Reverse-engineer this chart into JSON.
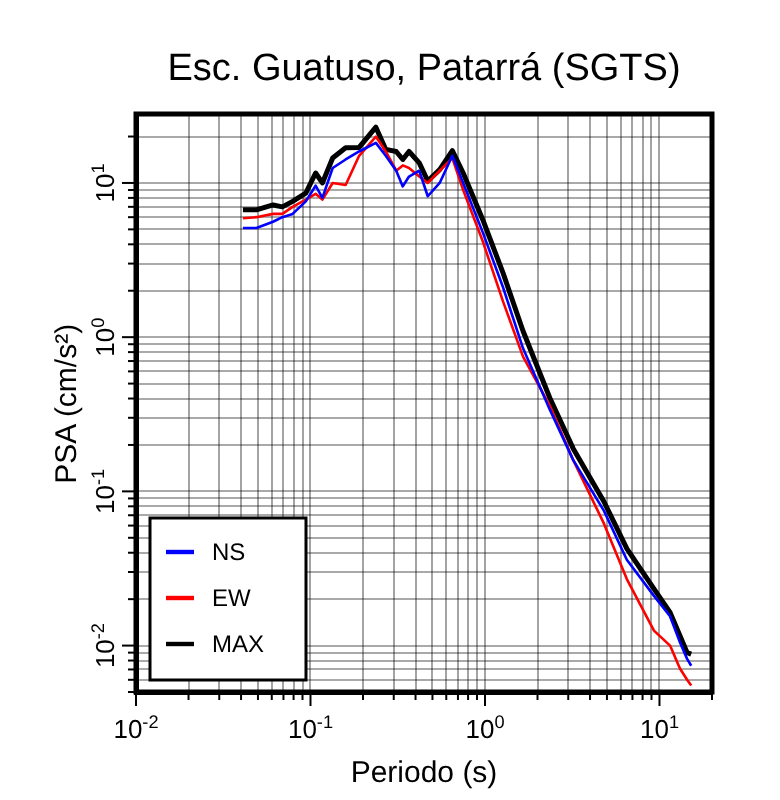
{
  "chart_data": {
    "type": "line",
    "title": "Esc. Guatuso, Patarrá (SGTS)",
    "xlabel": "Periodo (s)",
    "ylabel": "PSA (cm/s²)",
    "log": "xy",
    "grid": true,
    "legend": "bottom left",
    "xlim": [
      0.01,
      20
    ],
    "ylim": [
      0.005,
      28
    ],
    "xticks": [
      {
        "value": 0.01,
        "label": "10$^{-2}$"
      },
      {
        "value": 0.02,
        "label": null
      },
      {
        "value": 0.03,
        "label": null
      },
      {
        "value": 0.04,
        "label": null
      },
      {
        "value": 0.05,
        "label": null
      },
      {
        "value": 0.06,
        "label": null
      },
      {
        "value": 0.07,
        "label": null
      },
      {
        "value": 0.08,
        "label": null
      },
      {
        "value": 0.09,
        "label": null
      },
      {
        "value": 0.1,
        "label": "10$^{-1}$"
      },
      {
        "value": 0.2,
        "label": null
      },
      {
        "value": 0.3,
        "label": null
      },
      {
        "value": 0.4,
        "label": null
      },
      {
        "value": 0.5,
        "label": null
      },
      {
        "value": 0.6,
        "label": null
      },
      {
        "value": 0.7,
        "label": null
      },
      {
        "value": 0.8,
        "label": null
      },
      {
        "value": 0.9,
        "label": null
      },
      {
        "value": 1,
        "label": "10$^{0}$"
      },
      {
        "value": 2,
        "label": null
      },
      {
        "value": 3,
        "label": null
      },
      {
        "value": 4,
        "label": null
      },
      {
        "value": 5,
        "label": null
      },
      {
        "value": 6,
        "label": null
      },
      {
        "value": 7,
        "label": null
      },
      {
        "value": 8,
        "label": null
      },
      {
        "value": 9,
        "label": null
      },
      {
        "value": 10,
        "label": "10$^{1}$"
      },
      {
        "value": 20,
        "label": null
      }
    ],
    "yticks": [
      {
        "value": 0.005,
        "label": null
      },
      {
        "value": 0.006,
        "label": null
      },
      {
        "value": 0.007,
        "label": null
      },
      {
        "value": 0.008,
        "label": null
      },
      {
        "value": 0.009,
        "label": null
      },
      {
        "value": 0.01,
        "label": "10$^{-2}$"
      },
      {
        "value": 0.02,
        "label": null
      },
      {
        "value": 0.03,
        "label": null
      },
      {
        "value": 0.04,
        "label": null
      },
      {
        "value": 0.05,
        "label": null
      },
      {
        "value": 0.06,
        "label": null
      },
      {
        "value": 0.07,
        "label": null
      },
      {
        "value": 0.08,
        "label": null
      },
      {
        "value": 0.09,
        "label": null
      },
      {
        "value": 0.1,
        "label": "10$^{-1}$"
      },
      {
        "value": 0.2,
        "label": null
      },
      {
        "value": 0.3,
        "label": null
      },
      {
        "value": 0.4,
        "label": null
      },
      {
        "value": 0.5,
        "label": null
      },
      {
        "value": 0.6,
        "label": null
      },
      {
        "value": 0.7,
        "label": null
      },
      {
        "value": 0.8,
        "label": null
      },
      {
        "value": 0.9,
        "label": null
      },
      {
        "value": 1,
        "label": "10$^{0}$"
      },
      {
        "value": 2,
        "label": null
      },
      {
        "value": 3,
        "label": null
      },
      {
        "value": 4,
        "label": null
      },
      {
        "value": 5,
        "label": null
      },
      {
        "value": 6,
        "label": null
      },
      {
        "value": 7,
        "label": null
      },
      {
        "value": 8,
        "label": null
      },
      {
        "value": 9,
        "label": null
      },
      {
        "value": 10,
        "label": "10$^{1}$"
      },
      {
        "value": 20,
        "label": null
      }
    ],
    "x": [
      0.041,
      0.049,
      0.061,
      0.069,
      0.079,
      0.094,
      0.107,
      0.117,
      0.134,
      0.159,
      0.19,
      0.237,
      0.27,
      0.31,
      0.338,
      0.367,
      0.42,
      0.47,
      0.55,
      0.65,
      0.75,
      0.97,
      1.27,
      1.65,
      2.35,
      3.2,
      4.8,
      6.5,
      9.3,
      11.5,
      13.1,
      14.4,
      15.2
    ],
    "series": [
      {
        "name": "NS",
        "color": "#0000ff",
        "values": [
          5.1,
          5.1,
          5.6,
          6.0,
          6.3,
          7.6,
          9.6,
          8.0,
          12.5,
          14.2,
          16,
          18.2,
          15,
          12,
          9.5,
          11,
          12,
          8.2,
          10,
          15,
          10,
          4.8,
          2.1,
          0.85,
          0.34,
          0.16,
          0.075,
          0.036,
          0.021,
          0.0155,
          0.0105,
          0.0082,
          0.0074
        ]
      },
      {
        "name": "EW",
        "color": "#ff0000",
        "values": [
          5.9,
          6.0,
          6.3,
          6.3,
          7.0,
          7.8,
          8.5,
          7.8,
          10,
          9.7,
          15,
          20,
          16,
          12,
          13,
          12.5,
          11,
          10,
          12,
          14.5,
          9,
          4.2,
          1.7,
          0.75,
          0.36,
          0.16,
          0.062,
          0.027,
          0.0125,
          0.01,
          0.0071,
          0.006,
          0.0055
        ]
      },
      {
        "name": "MAX",
        "color": "#000000",
        "values": [
          6.7,
          6.7,
          7.2,
          7.0,
          7.6,
          8.6,
          11.6,
          10,
          14.5,
          16.9,
          17,
          23,
          16.5,
          16,
          14.2,
          16,
          13.5,
          10.3,
          12.2,
          16.2,
          11.6,
          5.8,
          2.6,
          1.1,
          0.405,
          0.19,
          0.086,
          0.0425,
          0.0233,
          0.0164,
          0.0116,
          0.009,
          0.0088
        ]
      }
    ]
  }
}
